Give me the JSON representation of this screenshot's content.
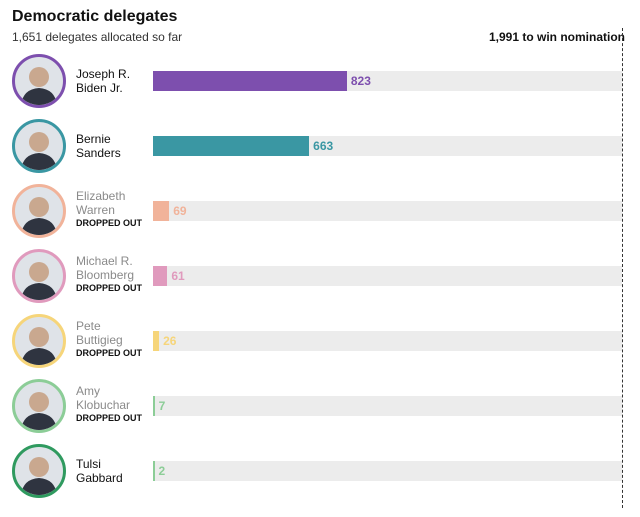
{
  "chart_data": {
    "type": "bar",
    "orientation": "horizontal",
    "title": "Democratic delegates",
    "subtitle": "1,651 delegates allocated so far",
    "xlim": [
      0,
      1991
    ],
    "threshold": {
      "value": 1991,
      "label": "1,991 to win nomination"
    },
    "track_color": "#ececec",
    "candidates": [
      {
        "name": "Joseph R. Biden Jr.",
        "value": 823,
        "color": "#7d4fae"
      },
      {
        "name": "Bernie Sanders",
        "value": 663,
        "color": "#3a97a3"
      },
      {
        "name": "Elizabeth Warren",
        "value": 69,
        "color": "#f1b39a",
        "status": "DROPPED OUT"
      },
      {
        "name": "Michael R. Bloomberg",
        "value": 61,
        "color": "#e09abd",
        "status": "DROPPED OUT"
      },
      {
        "name": "Pete Buttigieg",
        "value": 26,
        "color": "#f6d57a",
        "status": "DROPPED OUT"
      },
      {
        "name": "Amy Klobuchar",
        "value": 7,
        "color": "#8ccd97",
        "status": "DROPPED OUT"
      },
      {
        "name": "Tulsi Gabbard",
        "value": 2,
        "color": "#8ccd97",
        "ring": "#2f9a5f"
      }
    ]
  }
}
